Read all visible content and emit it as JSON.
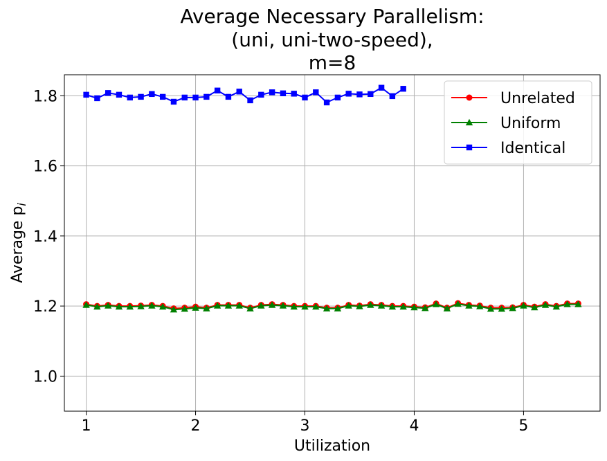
{
  "chart_data": {
    "type": "line",
    "title_lines": [
      "Average Necessary Parallelism:",
      "(uni, uni-two-speed),",
      "m=8"
    ],
    "xlabel": "Utilization",
    "ylabel": "Average p",
    "ylabel_sub": "i",
    "xlim": [
      0.8,
      5.7
    ],
    "ylim": [
      0.9,
      1.86
    ],
    "xticks": [
      1,
      2,
      3,
      4,
      5
    ],
    "yticks": [
      1.0,
      1.2,
      1.4,
      1.6,
      1.8
    ],
    "ytick_labels": [
      "1.0",
      "1.2",
      "1.4",
      "1.6",
      "1.8"
    ],
    "grid": true,
    "legend_position": "top-right",
    "series": [
      {
        "name": "Unrelated",
        "color": "#ff0000",
        "marker": "circle",
        "x": [
          1.0,
          1.1,
          1.2,
          1.3,
          1.4,
          1.5,
          1.6,
          1.7,
          1.8,
          1.9,
          2.0,
          2.1,
          2.2,
          2.3,
          2.4,
          2.5,
          2.6,
          2.7,
          2.8,
          2.9,
          3.0,
          3.1,
          3.2,
          3.3,
          3.4,
          3.5,
          3.6,
          3.7,
          3.8,
          3.9,
          4.0,
          4.1,
          4.2,
          4.3,
          4.4,
          4.5,
          4.6,
          4.7,
          4.8,
          4.9,
          5.0,
          5.1,
          5.2,
          5.3,
          5.4,
          5.5
        ],
        "values": [
          1.205,
          1.2,
          1.203,
          1.2,
          1.2,
          1.201,
          1.203,
          1.2,
          1.193,
          1.195,
          1.198,
          1.195,
          1.203,
          1.203,
          1.203,
          1.195,
          1.203,
          1.205,
          1.203,
          1.2,
          1.2,
          1.2,
          1.195,
          1.195,
          1.203,
          1.201,
          1.205,
          1.203,
          1.2,
          1.2,
          1.198,
          1.196,
          1.207,
          1.195,
          1.208,
          1.203,
          1.201,
          1.195,
          1.195,
          1.196,
          1.203,
          1.198,
          1.205,
          1.2,
          1.207,
          1.207
        ]
      },
      {
        "name": "Uniform",
        "color": "#008000",
        "marker": "triangle",
        "x": [
          1.0,
          1.1,
          1.2,
          1.3,
          1.4,
          1.5,
          1.6,
          1.7,
          1.8,
          1.9,
          2.0,
          2.1,
          2.2,
          2.3,
          2.4,
          2.5,
          2.6,
          2.7,
          2.8,
          2.9,
          3.0,
          3.1,
          3.2,
          3.3,
          3.4,
          3.5,
          3.6,
          3.7,
          3.8,
          3.9,
          4.0,
          4.1,
          4.2,
          4.3,
          4.4,
          4.5,
          4.6,
          4.7,
          4.8,
          4.9,
          5.0,
          5.1,
          5.2,
          5.3,
          5.4,
          5.5
        ],
        "values": [
          1.203,
          1.198,
          1.201,
          1.198,
          1.198,
          1.199,
          1.201,
          1.198,
          1.19,
          1.192,
          1.195,
          1.193,
          1.201,
          1.201,
          1.201,
          1.193,
          1.201,
          1.203,
          1.201,
          1.198,
          1.198,
          1.198,
          1.193,
          1.193,
          1.201,
          1.199,
          1.203,
          1.201,
          1.198,
          1.198,
          1.196,
          1.194,
          1.205,
          1.193,
          1.206,
          1.201,
          1.199,
          1.192,
          1.192,
          1.194,
          1.201,
          1.196,
          1.203,
          1.198,
          1.205,
          1.205
        ]
      },
      {
        "name": "Identical",
        "color": "#0000ff",
        "marker": "square",
        "x": [
          1.0,
          1.1,
          1.2,
          1.3,
          1.4,
          1.5,
          1.6,
          1.7,
          1.8,
          1.9,
          2.0,
          2.1,
          2.2,
          2.3,
          2.4,
          2.5,
          2.6,
          2.7,
          2.8,
          2.9,
          3.0,
          3.1,
          3.2,
          3.3,
          3.4,
          3.5,
          3.6,
          3.7,
          3.8,
          3.9
        ],
        "values": [
          1.803,
          1.793,
          1.808,
          1.803,
          1.795,
          1.797,
          1.805,
          1.797,
          1.783,
          1.795,
          1.795,
          1.797,
          1.815,
          1.797,
          1.812,
          1.787,
          1.803,
          1.81,
          1.807,
          1.806,
          1.795,
          1.81,
          1.781,
          1.795,
          1.806,
          1.804,
          1.805,
          1.823,
          1.799,
          1.82
        ]
      }
    ]
  }
}
